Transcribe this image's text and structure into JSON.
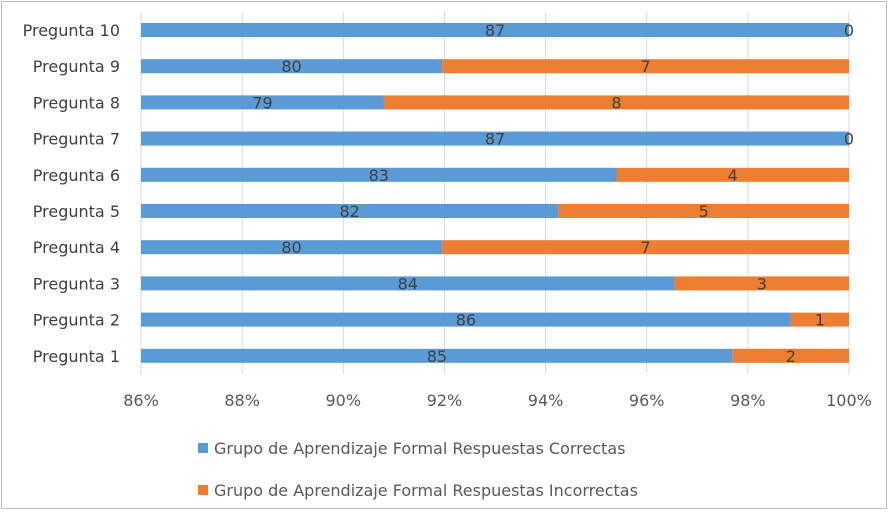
{
  "chart_data": {
    "type": "bar",
    "orientation": "horizontal",
    "stacked": "percent",
    "categories": [
      "Pregunta 10",
      "Pregunta 9",
      "Pregunta 8",
      "Pregunta 7",
      "Pregunta 6",
      "Pregunta 5",
      "Pregunta 4",
      "Pregunta 3",
      "Pregunta 2",
      "Pregunta 1"
    ],
    "series": [
      {
        "name": "Grupo de Aprendizaje Formal Respuestas Correctas",
        "color": "#5B9BD5",
        "values": [
          87,
          80,
          79,
          87,
          83,
          82,
          80,
          84,
          86,
          85
        ]
      },
      {
        "name": "Grupo de Aprendizaje Formal Respuestas Incorrectas",
        "color": "#ED7D31",
        "values": [
          0,
          7,
          8,
          0,
          4,
          5,
          7,
          3,
          1,
          2
        ]
      }
    ],
    "xlim": [
      0.86,
      1.0
    ],
    "xticks": [
      "86%",
      "88%",
      "90%",
      "92%",
      "94%",
      "96%",
      "98%",
      "100%"
    ],
    "legend_position": "bottom",
    "data_labels": true,
    "grid": true
  }
}
